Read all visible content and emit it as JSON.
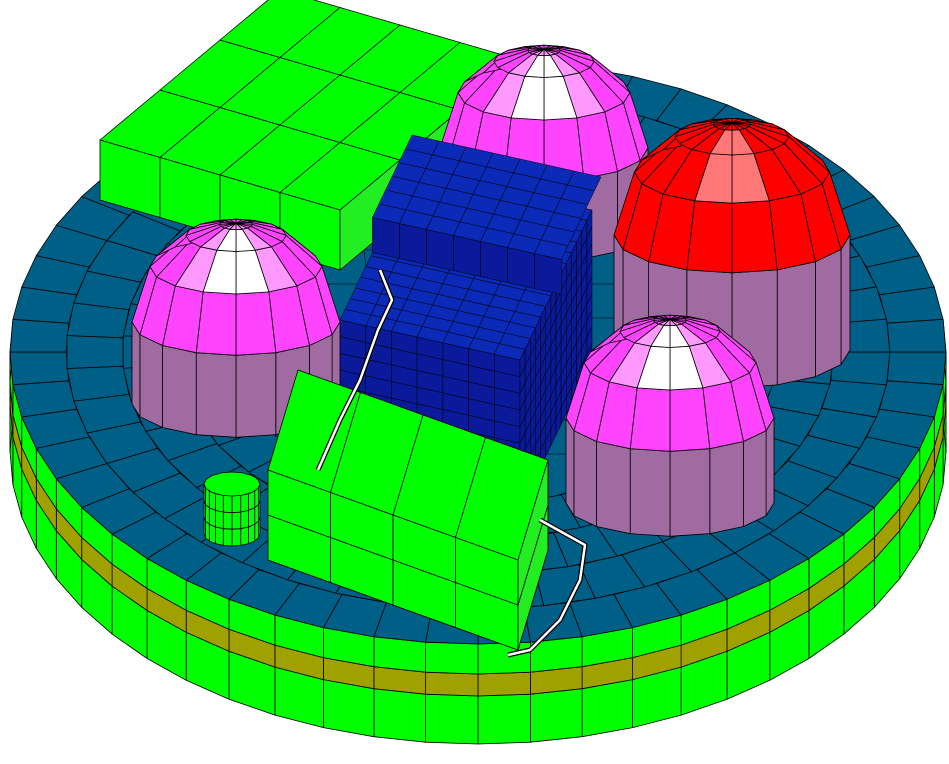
{
  "scene": {
    "background": "#ffffff",
    "mesh_line_color": "#000000"
  },
  "colors": {
    "platform_top": "#005f87",
    "platform_band_green": "#00ff00",
    "platform_band_olive": "#a0a000",
    "box_green": "#00ff00",
    "box_green_side": "#22ee22",
    "dome_magenta": "#ff44ff",
    "dome_magenta_light": "#ff99ff",
    "dome_white": "#ffffff",
    "dome_mauve": "#a06ba0",
    "dome_red": "#ff0000",
    "dome_red_dark": "#cc0000",
    "dome_red_light": "#ff7777",
    "building_blue": "#0a1a9a",
    "building_blue_top": "#0c2ab8",
    "pipe": "#ffffff"
  },
  "components": [
    {
      "name": "circular-platform"
    },
    {
      "name": "green-box-back-left"
    },
    {
      "name": "green-box-front"
    },
    {
      "name": "small-green-cylinder"
    },
    {
      "name": "magenta-dome-back"
    },
    {
      "name": "magenta-dome-left"
    },
    {
      "name": "magenta-dome-right"
    },
    {
      "name": "red-dome"
    },
    {
      "name": "blue-building-block"
    },
    {
      "name": "pipe-route"
    }
  ]
}
